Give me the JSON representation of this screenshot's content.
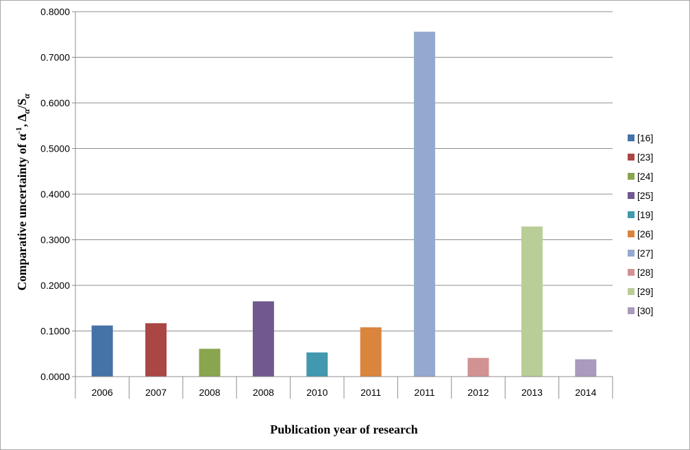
{
  "chart_data": {
    "type": "bar",
    "categories": [
      "2006",
      "2007",
      "2008",
      "2008",
      "2010",
      "2011",
      "2011",
      "2012",
      "2013",
      "2014"
    ],
    "values": [
      0.112,
      0.117,
      0.061,
      0.165,
      0.053,
      0.108,
      0.756,
      0.041,
      0.329,
      0.038
    ],
    "series_names": [
      "[16]",
      "[23]",
      "[24]",
      "[25]",
      "[19]",
      "[26]",
      "[27]",
      "[28]",
      "[29]",
      "[30]"
    ],
    "colors": [
      "#4572a7",
      "#aa4643",
      "#89a54e",
      "#71588f",
      "#4198af",
      "#db843d",
      "#93a9cf",
      "#d19392",
      "#b9cd96",
      "#a99bbd"
    ],
    "xlabel": "Publication year of research",
    "ylabel": {
      "prefix": "Comparative uncertainty of α",
      "superscript": "-1",
      "middle": ",  Δ",
      "sub1": "α",
      "slash": "/S",
      "sub2": "α"
    },
    "ylim": [
      0,
      0.8
    ],
    "yticks": [
      "0.0000",
      "0.1000",
      "0.2000",
      "0.3000",
      "0.4000",
      "0.5000",
      "0.6000",
      "0.7000",
      "0.8000"
    ],
    "grid": true,
    "legend_position": "right"
  }
}
